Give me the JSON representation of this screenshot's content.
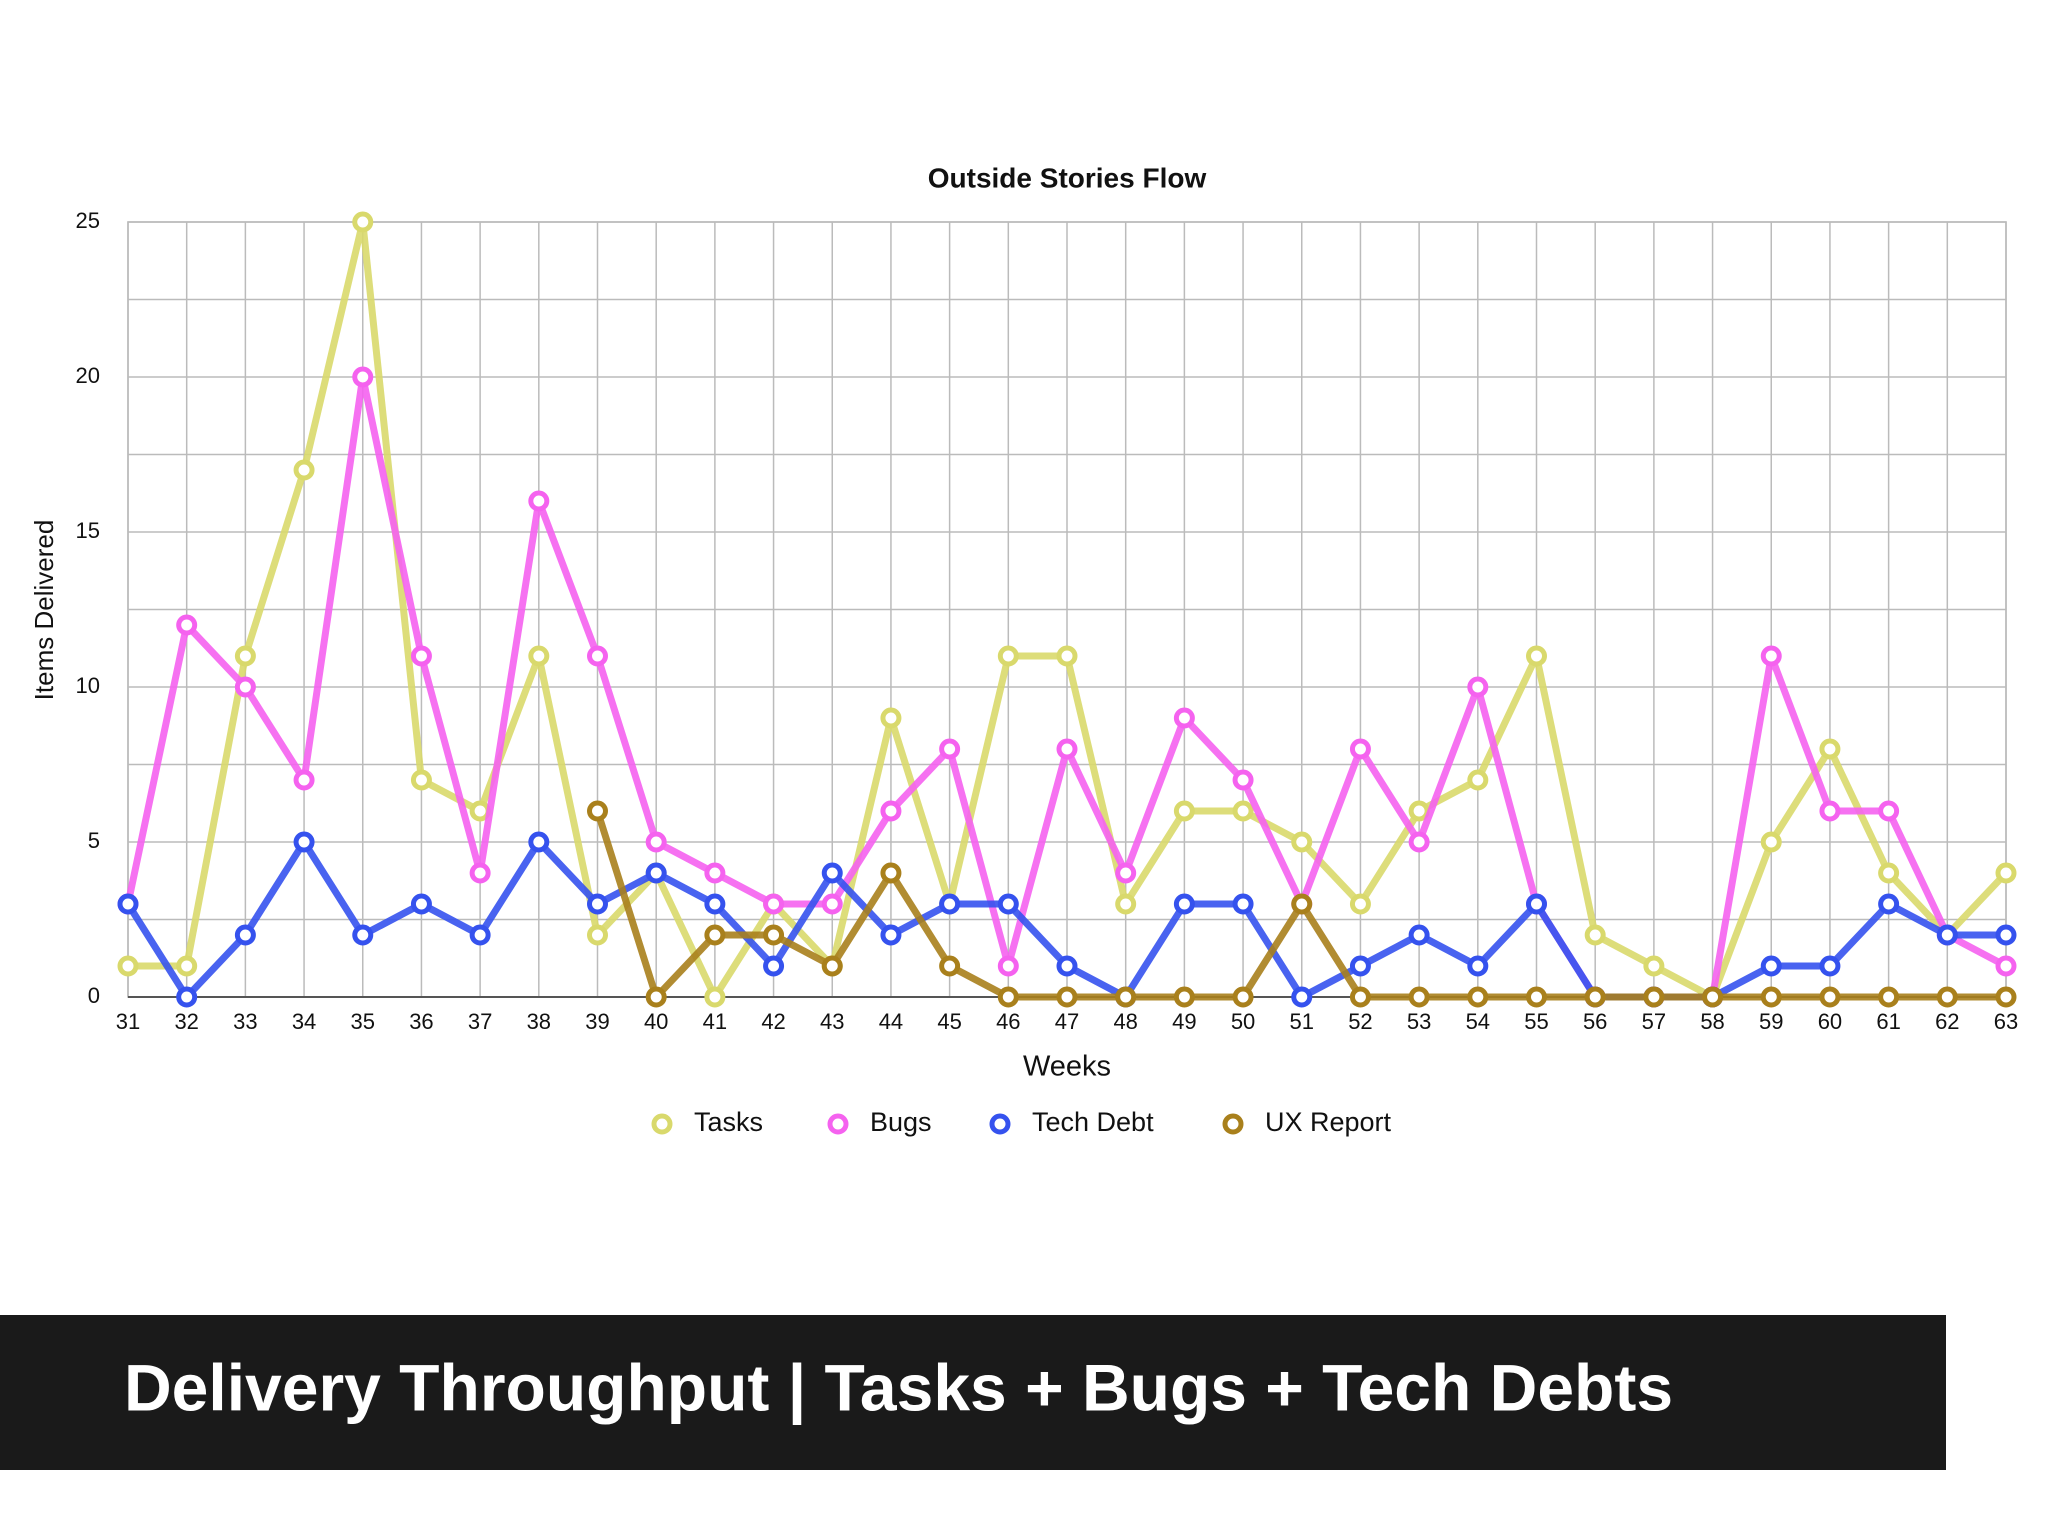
{
  "chart_data": {
    "type": "line",
    "title": "Outside Stories Flow",
    "x_label": "Weeks",
    "y_label": "Items Delivered",
    "categories": [
      "31",
      "32",
      "33",
      "34",
      "35",
      "36",
      "37",
      "38",
      "39",
      "40",
      "41",
      "42",
      "43",
      "44",
      "45",
      "46",
      "47",
      "48",
      "49",
      "50",
      "51",
      "52",
      "53",
      "54",
      "55",
      "56",
      "57",
      "58",
      "59",
      "60",
      "61",
      "62",
      "63"
    ],
    "series": [
      {
        "name": "Tasks",
        "color": "#d9d96c",
        "values": [
          1,
          1,
          11,
          17,
          25,
          7,
          6,
          11,
          2,
          4,
          0,
          3,
          1,
          9,
          3,
          11,
          11,
          3,
          6,
          6,
          5,
          3,
          6,
          7,
          11,
          2,
          1,
          0,
          5,
          8,
          4,
          2,
          4
        ]
      },
      {
        "name": "Bugs",
        "color": "#f562ef",
        "values": [
          3,
          12,
          10,
          7,
          20,
          11,
          4,
          16,
          11,
          5,
          4,
          3,
          3,
          6,
          8,
          1,
          8,
          4,
          9,
          7,
          3,
          8,
          5,
          10,
          3,
          0,
          0,
          0,
          11,
          6,
          6,
          2,
          1
        ]
      },
      {
        "name": "Tech Debt",
        "color": "#3552ee",
        "values": [
          3,
          0,
          2,
          5,
          2,
          3,
          2,
          5,
          3,
          4,
          3,
          1,
          4,
          2,
          3,
          3,
          1,
          0,
          3,
          3,
          0,
          1,
          2,
          1,
          3,
          0,
          0,
          0,
          1,
          1,
          3,
          2,
          2
        ]
      },
      {
        "name": "UX Report",
        "color": "#a9801c",
        "values": [
          null,
          null,
          null,
          null,
          null,
          null,
          null,
          null,
          6,
          0,
          2,
          2,
          1,
          4,
          1,
          0,
          0,
          0,
          0,
          0,
          3,
          0,
          0,
          0,
          0,
          0,
          0,
          0,
          0,
          0,
          0,
          0,
          0
        ]
      }
    ],
    "ylim": [
      0,
      25
    ],
    "yticks": [
      0,
      5,
      10,
      15,
      20,
      25
    ],
    "minor_yticks": [
      2.5,
      7.5,
      12.5,
      17.5,
      22.5
    ],
    "grid": true,
    "legend": "bottom"
  },
  "caption": "Delivery Throughput | Tasks + Bugs + Tech Debts"
}
